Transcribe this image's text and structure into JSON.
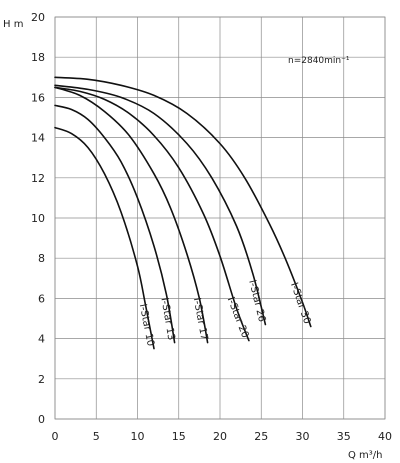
{
  "chart_data": {
    "type": "line",
    "title": "",
    "ylabel": "H m",
    "xlabel": "Q m³/h",
    "annotation": "n=2840min⁻¹",
    "xlim": [
      0,
      40
    ],
    "ylim": [
      0,
      20
    ],
    "xticks": [
      0,
      5,
      10,
      15,
      20,
      25,
      30,
      35,
      40
    ],
    "yticks": [
      0,
      2,
      4,
      6,
      8,
      10,
      12,
      14,
      16,
      18,
      20
    ],
    "grid": true,
    "series": [
      {
        "name": "I-Star 10",
        "x": [
          0,
          2,
          4,
          6,
          8,
          10,
          11,
          12
        ],
        "y": [
          14.5,
          14.2,
          13.5,
          12.2,
          10.3,
          7.6,
          5.6,
          3.5
        ]
      },
      {
        "name": "I-Star 13",
        "x": [
          0,
          2,
          4,
          6,
          8,
          10,
          12,
          13.5,
          14.5
        ],
        "y": [
          15.6,
          15.4,
          14.9,
          14.0,
          12.8,
          11.0,
          8.6,
          6.2,
          3.8
        ]
      },
      {
        "name": "I-Star 17",
        "x": [
          0,
          3,
          6,
          9,
          12,
          14,
          16,
          17.5,
          18.5
        ],
        "y": [
          16.5,
          16.1,
          15.3,
          14.1,
          12.2,
          10.5,
          8.2,
          6.0,
          3.8
        ]
      },
      {
        "name": "I-Star 20",
        "x": [
          0,
          3,
          6,
          9,
          12,
          15,
          18,
          20,
          22,
          23.5
        ],
        "y": [
          16.5,
          16.3,
          15.9,
          15.2,
          14.1,
          12.5,
          10.2,
          8.1,
          5.5,
          3.9
        ]
      },
      {
        "name": "I-Star 26",
        "x": [
          0,
          4,
          8,
          12,
          16,
          19,
          22,
          24,
          25.5
        ],
        "y": [
          16.6,
          16.4,
          16.0,
          15.2,
          13.7,
          12.0,
          9.6,
          7.2,
          4.7
        ]
      },
      {
        "name": "I-Star 30",
        "x": [
          0,
          4,
          8,
          12,
          16,
          20,
          23,
          26,
          28,
          30,
          31
        ],
        "y": [
          17.0,
          16.9,
          16.6,
          16.1,
          15.2,
          13.7,
          12.0,
          9.7,
          7.9,
          5.8,
          4.6
        ]
      }
    ]
  }
}
